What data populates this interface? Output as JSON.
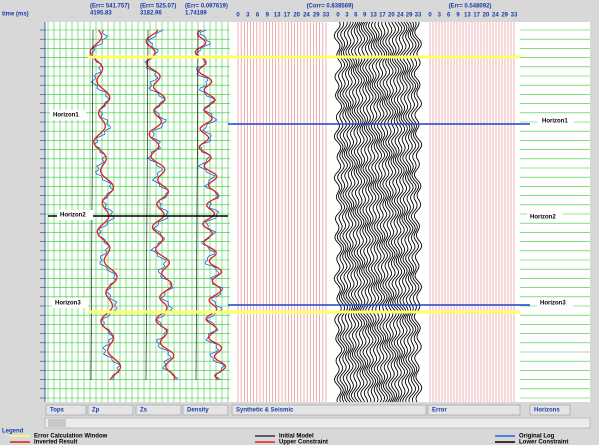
{
  "header": {
    "time_label": "time (ms)",
    "logs": [
      {
        "err": "(Err= 541.757)",
        "value": "4195.83"
      },
      {
        "err": "(Err= 525.07)",
        "value": "3182.96"
      },
      {
        "err": "(Err= 0.097619)",
        "value": "1.74189"
      }
    ],
    "correlation": "(Corr= 0.838569)",
    "error": "(Err= 0.548092)",
    "trace_numbers": [
      0,
      3,
      6,
      9,
      13,
      17,
      20,
      24,
      29,
      33
    ]
  },
  "horizons": {
    "left": [
      "Horizon1",
      "Horizon2",
      "Horizon3"
    ],
    "right": [
      "Horizon1",
      "Horizon2",
      "Horizon3"
    ]
  },
  "tabs": [
    "Tops",
    "Zp",
    "Zs",
    "Density",
    "Synthetic & Seismic",
    "Error",
    "Horizons"
  ],
  "legend": {
    "title": "Legend",
    "items": [
      "Error Calculation Window",
      "Inverted Result",
      "Initial Model",
      "Upper Constraint",
      "Original Log",
      "Lower Constraint"
    ]
  }
}
